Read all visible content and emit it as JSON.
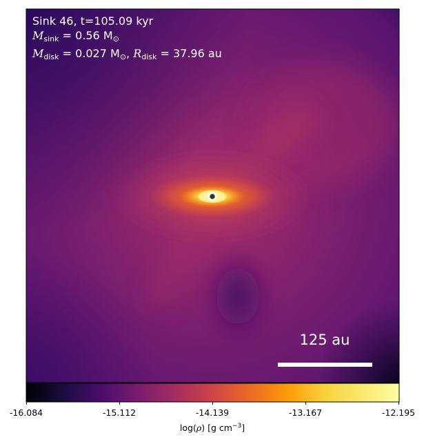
{
  "annotation": {
    "line1": "Sink 46, t=105.09 kyr",
    "m_sink_label": "M",
    "m_sink_sub": "sink",
    "m_sink_value": " = 0.56 M",
    "m_sink_unit_sub": "⊙",
    "m_disk_label": "M",
    "m_disk_sub": "disk",
    "m_disk_value": " = 0.027 M",
    "m_disk_unit_sub": "⊙",
    "sep": ", ",
    "r_disk_label": "R",
    "r_disk_sub": "disk",
    "r_disk_value": " = 37.96 au"
  },
  "scale_bar": {
    "label": "125 au"
  },
  "colorbar": {
    "ticks": [
      "-16.084",
      "-15.112",
      "-14.139",
      "-13.167",
      "-12.195"
    ],
    "label_prefix": "log(",
    "label_rho": "ρ",
    "label_mid": ") [g cm",
    "label_exp": "−3",
    "label_suffix": "]",
    "colormap": "inferno"
  },
  "colors": {
    "sink_marker_edge": "#ffffff",
    "sink_marker_fill": "#2d3a2d"
  },
  "icons": {
    "sink": "sink-particle-marker"
  }
}
